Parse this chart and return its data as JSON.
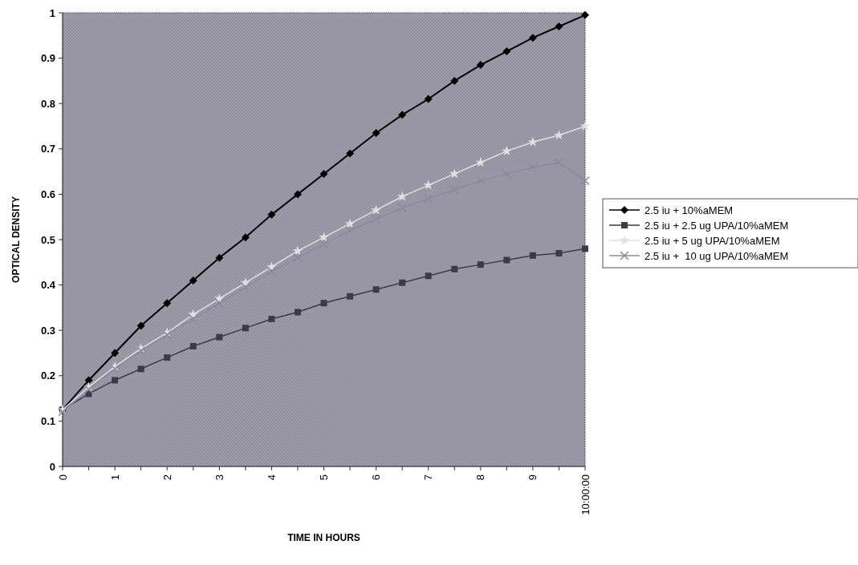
{
  "chart_data": {
    "type": "line",
    "xlabel": "TIME IN HOURS",
    "ylabel": "OPTICAL DENSITY",
    "categories": [
      "0",
      null,
      "1",
      null,
      "2",
      null,
      "3",
      null,
      "4",
      null,
      "5",
      null,
      "6",
      null,
      "7",
      null,
      "8",
      null,
      "9",
      null,
      "10:00:00"
    ],
    "ylim": [
      0,
      1
    ],
    "yticks": [
      0,
      0.1,
      0.2,
      0.3,
      0.4,
      0.5,
      0.6,
      0.7,
      0.8,
      0.9,
      1
    ],
    "grid": false,
    "legend": "right",
    "series": [
      {
        "name": "2.5 iu + 10%aMEM",
        "color": "#000000",
        "marker": "diamond",
        "values": [
          0.125,
          0.19,
          0.25,
          0.31,
          0.36,
          0.41,
          0.46,
          0.505,
          0.555,
          0.6,
          0.645,
          0.69,
          0.735,
          0.775,
          0.81,
          0.85,
          0.885,
          0.915,
          0.945,
          0.97,
          0.995
        ]
      },
      {
        "name": "2.5 iu + 2.5 ug UPA/10%aMEM",
        "color": "#3a3a48",
        "marker": "square",
        "values": [
          0.125,
          0.16,
          0.19,
          0.215,
          0.24,
          0.265,
          0.285,
          0.305,
          0.325,
          0.34,
          0.36,
          0.375,
          0.39,
          0.405,
          0.42,
          0.435,
          0.445,
          0.455,
          0.465,
          0.47,
          0.48
        ]
      },
      {
        "name": "2.5 iu + 5 ug UPA/10%aMEM",
        "color": "#e0e0e0",
        "marker": "star",
        "values": [
          0.125,
          0.175,
          0.22,
          0.26,
          0.295,
          0.335,
          0.37,
          0.405,
          0.44,
          0.475,
          0.505,
          0.535,
          0.565,
          0.595,
          0.62,
          0.645,
          0.67,
          0.695,
          0.715,
          0.73,
          0.75
        ]
      },
      {
        "name": "2.5 iu +  10 ug UPA/10%aMEM",
        "color": "#8a8aa0",
        "marker": "cross",
        "values": [
          0.12,
          0.17,
          0.215,
          0.255,
          0.29,
          0.325,
          0.36,
          0.395,
          0.43,
          0.46,
          0.49,
          0.52,
          0.545,
          0.57,
          0.59,
          0.61,
          0.63,
          0.645,
          0.66,
          0.67,
          0.63
        ]
      }
    ]
  }
}
